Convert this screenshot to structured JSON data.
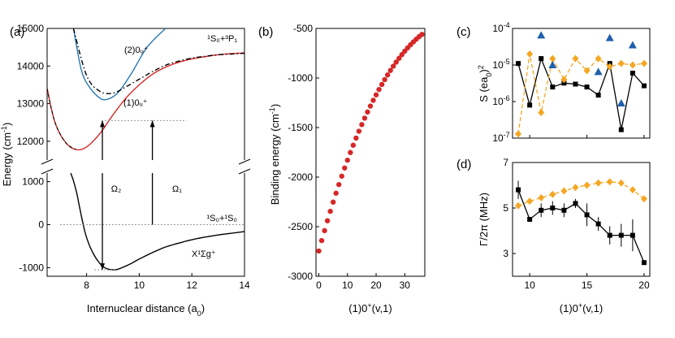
{
  "colors": {
    "red": "#d62728",
    "orange": "#f5a623",
    "blue": "#1f5fad",
    "black": "#000000",
    "curve_blue": "#2878b5"
  },
  "chart_data": [
    {
      "panel": "(a)",
      "type": "line",
      "xlabel": "Internuclear distance (a",
      "xlabel_sub": "0",
      "xlabel_end": ")",
      "ylabel": "Energy (cm",
      "ylabel_sup": "-1",
      "ylabel_end": ")",
      "xlim": [
        6.5,
        14
      ],
      "ylim_upper": [
        11500,
        15000
      ],
      "ylim_lower": [
        -1200,
        1200
      ],
      "xticks": [
        "8",
        "10",
        "12",
        "14"
      ],
      "yticks_upper": [
        "12000",
        "13000",
        "14000",
        "15000"
      ],
      "yticks_lower": [
        "-1000",
        "0",
        "1000"
      ],
      "annotations": {
        "excited_asymptote": "¹S₀+³P₁",
        "ground_asymptote": "¹S₀+¹S₀",
        "curve_2": "(2)0ᵤ⁺",
        "curve_1": "(1)0ᵤ⁺",
        "ground_state": "X¹Σg⁺",
        "omega2": "Ω₂",
        "omega1": "Ω₁"
      },
      "series": [
        {
          "name": "(2)0u+",
          "color": "curve_blue",
          "x": [
            7.5,
            7.8,
            8.1,
            8.5,
            8.8,
            9.2,
            9.7,
            10.3,
            11.0
          ],
          "y": [
            15000,
            13900,
            13450,
            13150,
            13120,
            13300,
            13800,
            14500,
            15000
          ]
        },
        {
          "name": "(1)0u+",
          "color": "red",
          "x": [
            6.5,
            6.8,
            7.2,
            7.6,
            8.0,
            8.5,
            9.0,
            9.5,
            10.0,
            10.5,
            11.0,
            11.5,
            12.0,
            12.5,
            13.0,
            13.5,
            14.0
          ],
          "y": [
            13400,
            12500,
            11970,
            11780,
            11850,
            12200,
            12700,
            13150,
            13500,
            13780,
            13970,
            14100,
            14190,
            14250,
            14300,
            14330,
            14350
          ]
        },
        {
          "name": "dash-dot",
          "color": "black",
          "x": [
            7.5,
            8.0,
            8.5,
            9.0,
            9.5,
            10.0,
            10.5,
            11.0,
            11.5,
            12.0,
            12.5,
            13.0,
            13.5,
            14.0
          ],
          "y": [
            15000,
            13750,
            13330,
            13280,
            13450,
            13650,
            13850,
            14020,
            14130,
            14210,
            14260,
            14300,
            14320,
            14340
          ]
        },
        {
          "name": "X1Sigma_g+",
          "color": "black",
          "x": [
            7.4,
            7.6,
            8.0,
            8.5,
            9.0,
            9.5,
            10.0,
            10.5,
            11.0,
            11.5,
            12.0,
            12.5,
            13.0,
            13.5,
            14.0
          ],
          "y": [
            1200,
            800,
            -300,
            -900,
            -1050,
            -960,
            -800,
            -650,
            -520,
            -430,
            -350,
            -290,
            -240,
            -200,
            -160
          ]
        }
      ],
      "level_upper": 12550,
      "level_lower_zero": 0,
      "level_lower_bottom": -1050,
      "arrows": [
        {
          "label": "omega2",
          "x": 8.6,
          "from": -1050,
          "to": 12550
        },
        {
          "label": "omega1",
          "x": 10.5,
          "from": 0,
          "to": 12550
        }
      ]
    },
    {
      "panel": "(b)",
      "type": "scatter",
      "xlabel": "(1)0",
      "xlabel_sup": "+",
      "xlabel_sub": "u",
      "xlabel_end": "(v,1)",
      "ylabel": "Binding energy (cm",
      "ylabel_sup": "-1",
      "ylabel_end": ")",
      "xlim": [
        -1,
        37
      ],
      "ylim": [
        -3000,
        -500
      ],
      "xticks": [
        "0",
        "10",
        "20",
        "30"
      ],
      "yticks": [
        "-3000",
        "-2500",
        "-2000",
        "-1500",
        "-1000",
        "-500"
      ],
      "color": "red",
      "x": [
        0,
        1,
        2,
        3,
        4,
        5,
        6,
        7,
        8,
        9,
        10,
        11,
        12,
        13,
        14,
        15,
        16,
        17,
        18,
        19,
        20,
        21,
        22,
        23,
        24,
        25,
        26,
        27,
        28,
        29,
        30,
        31,
        32,
        33,
        34,
        35,
        36
      ],
      "y": [
        -2745,
        -2640,
        -2540,
        -2440,
        -2345,
        -2252,
        -2162,
        -2075,
        -1990,
        -1908,
        -1829,
        -1752,
        -1678,
        -1606,
        -1537,
        -1470,
        -1405,
        -1343,
        -1283,
        -1225,
        -1170,
        -1116,
        -1065,
        -1016,
        -969,
        -924,
        -881,
        -840,
        -801,
        -764,
        -729,
        -696,
        -665,
        -636,
        -609,
        -583,
        -560
      ]
    },
    {
      "panel": "(c)",
      "type": "line",
      "ylabel": "S (ea",
      "ylabel_sub": "0",
      "ylabel_end": ")",
      "ylabel_sup": "2",
      "yscale": "log",
      "xlim": [
        8.5,
        20.5
      ],
      "ylim": [
        1e-07,
        0.0001
      ],
      "yticks": [
        "10",
        "10",
        "10",
        "10"
      ],
      "yticks_exp": [
        "-7",
        "-6",
        "-5",
        "-4"
      ],
      "series": [
        {
          "name": "black",
          "color": "black",
          "marker": "square",
          "x": [
            9,
            10,
            11,
            12,
            13,
            14,
            15,
            16,
            17,
            18,
            19,
            20
          ],
          "y": [
            1.1e-05,
            8e-07,
            1.5e-05,
            2.5e-06,
            3.2e-06,
            3e-06,
            2.5e-06,
            1.5e-06,
            1.1e-05,
            1.7e-07,
            6e-06,
            2.7e-06
          ]
        },
        {
          "name": "orange",
          "color": "orange",
          "marker": "diamond",
          "dashed": true,
          "x": [
            9,
            10,
            11,
            12,
            13,
            14,
            15,
            16,
            17,
            18,
            19,
            20
          ],
          "y": [
            1.3e-07,
            2e-05,
            5e-07,
            1.5e-05,
            4e-06,
            1.5e-05,
            7e-06,
            1.5e-05,
            9e-06,
            1.1e-05,
            1e-05,
            1.1e-05
          ]
        },
        {
          "name": "blue",
          "color": "blue",
          "marker": "triangle",
          "x": [
            11,
            12,
            16,
            17,
            18,
            19
          ],
          "y": [
            6.5e-05,
            1e-05,
            6.5e-06,
            5.5e-05,
            9e-07,
            3.5e-05
          ]
        }
      ]
    },
    {
      "panel": "(d)",
      "type": "line",
      "xlabel": "(1)0",
      "xlabel_sup": "+",
      "xlabel_sub": "u",
      "xlabel_end": "(v,1)",
      "ylabel": "Γ/2π (MHz)",
      "xlim": [
        8.5,
        20.5
      ],
      "ylim": [
        2,
        7
      ],
      "xticks": [
        "10",
        "15",
        "20"
      ],
      "yticks": [
        "3",
        "5",
        "7"
      ],
      "series": [
        {
          "name": "black",
          "color": "black",
          "marker": "square",
          "x": [
            9,
            10,
            11,
            12,
            13,
            14,
            15,
            16,
            17,
            18,
            19,
            20
          ],
          "y": [
            5.8,
            4.5,
            4.9,
            5.0,
            4.9,
            5.2,
            4.7,
            4.3,
            3.8,
            3.8,
            3.8,
            2.6
          ],
          "err": [
            0.4,
            0.1,
            0.3,
            0.3,
            0.3,
            0.2,
            0.5,
            0.3,
            0.4,
            0.5,
            0.7,
            0.1
          ]
        },
        {
          "name": "orange",
          "color": "orange",
          "marker": "diamond",
          "dashed": true,
          "x": [
            9,
            10,
            11,
            12,
            13,
            14,
            15,
            16,
            17,
            18,
            19,
            20
          ],
          "y": [
            5.1,
            5.3,
            5.45,
            5.6,
            5.75,
            5.9,
            6.0,
            6.1,
            6.15,
            6.1,
            5.8,
            5.4
          ]
        }
      ]
    }
  ]
}
